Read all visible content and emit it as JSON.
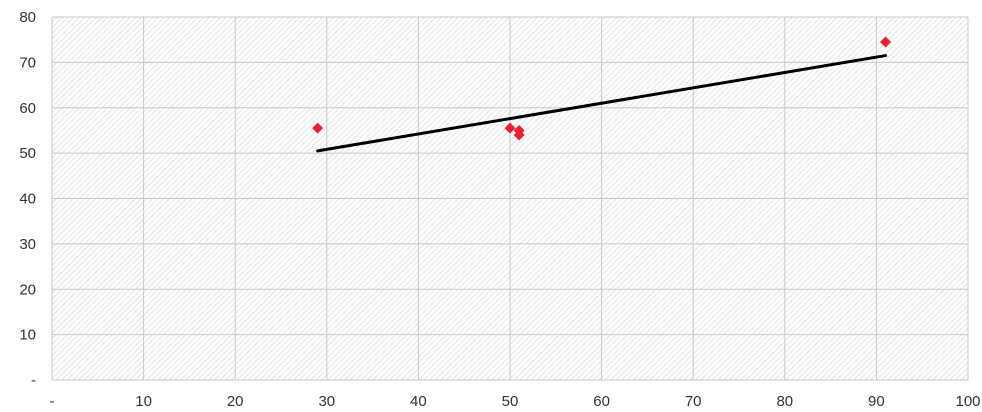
{
  "chart_data": {
    "type": "scatter",
    "title": "",
    "xlabel": "",
    "ylabel": "",
    "xlim": [
      0,
      100
    ],
    "ylim": [
      0,
      80
    ],
    "x_ticks": [
      {
        "value": 0,
        "label": "-"
      },
      {
        "value": 10,
        "label": "10"
      },
      {
        "value": 20,
        "label": "20"
      },
      {
        "value": 30,
        "label": "30"
      },
      {
        "value": 40,
        "label": "40"
      },
      {
        "value": 50,
        "label": "50"
      },
      {
        "value": 60,
        "label": "60"
      },
      {
        "value": 70,
        "label": "70"
      },
      {
        "value": 80,
        "label": "80"
      },
      {
        "value": 90,
        "label": "90"
      },
      {
        "value": 100,
        "label": "100"
      }
    ],
    "y_ticks": [
      {
        "value": 0,
        "label": "-"
      },
      {
        "value": 10,
        "label": "10"
      },
      {
        "value": 20,
        "label": "20"
      },
      {
        "value": 30,
        "label": "30"
      },
      {
        "value": 40,
        "label": "40"
      },
      {
        "value": 50,
        "label": "50"
      },
      {
        "value": 60,
        "label": "60"
      },
      {
        "value": 70,
        "label": "70"
      },
      {
        "value": 80,
        "label": "80"
      }
    ],
    "grid": true,
    "legend": "none",
    "series": [
      {
        "points": [
          {
            "x": 29,
            "y": 55.5
          },
          {
            "x": 50,
            "y": 55.5
          },
          {
            "x": 51,
            "y": 55
          },
          {
            "x": 51,
            "y": 54
          },
          {
            "x": 91,
            "y": 74.5
          }
        ]
      }
    ],
    "trendline": {
      "x1": 29,
      "y1": 50.5,
      "x2": 91,
      "y2": 71.5
    },
    "colors": {
      "marker": "#e8202f",
      "trendline": "#000000",
      "grid": "#c8c8cc",
      "plot_pattern": "#d0d0d4"
    }
  }
}
